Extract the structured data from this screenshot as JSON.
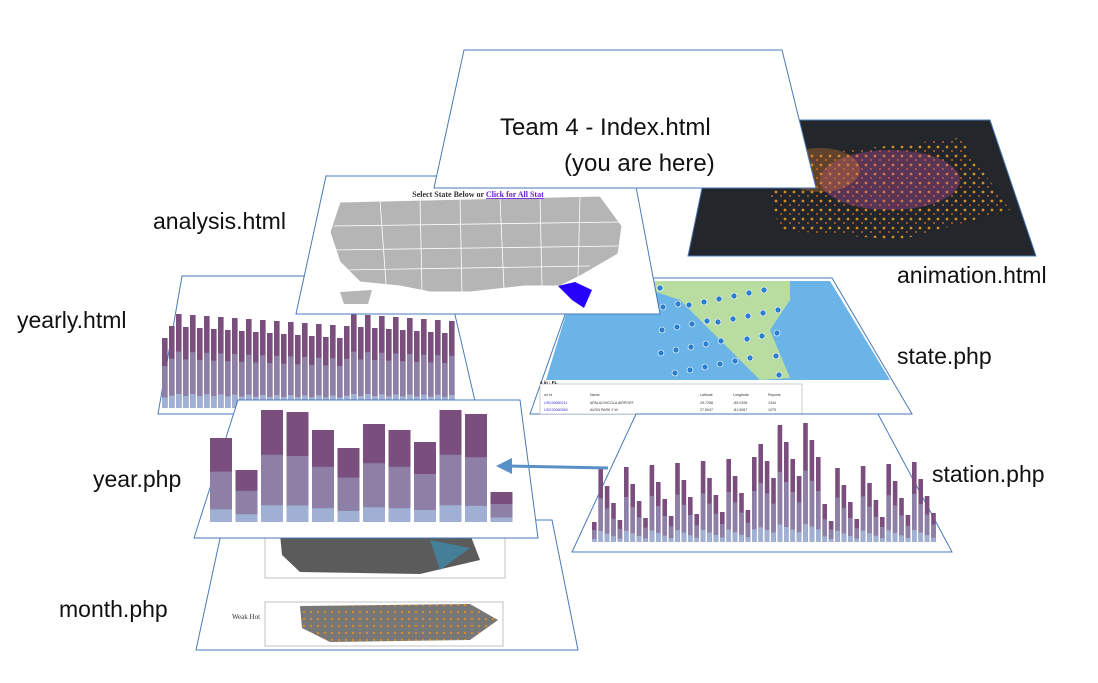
{
  "labels": {
    "index_line1": "Team 4  - Index.html",
    "index_line2": "(you are here)",
    "analysis": "analysis.html",
    "animation": "animation.html",
    "yearly": "yearly.html",
    "state": "state.php",
    "year": "year.php",
    "station": "station.php",
    "month": "month.php"
  },
  "analysis_header": {
    "prefix": "Select State Below or ",
    "link": "Click for All Stat"
  },
  "state_table": {
    "heading": "s in : FL",
    "columns": [
      "on Id",
      "Name",
      "Latitude",
      "Longitude",
      "Reports"
    ],
    "rows": [
      [
        "USC00080211",
        "APALACHICOLA AIRPORT",
        "29.7258",
        "-85.0206",
        "1344"
      ],
      [
        "USC00080369",
        "AVON PARK 2 W",
        "27.5947",
        "-81.5267",
        "1375"
      ]
    ]
  },
  "month_legend": "Weak Hot",
  "colors": {
    "panel_border": "#4a7ab8",
    "bar_dark": "#7a4f7d",
    "bar_mid": "#8d7fa6",
    "bar_light": "#9fb0d4",
    "map_gray": "#b5b5b5",
    "highlight_state": "#2600ff",
    "ocean": "#6ab4e8",
    "arrow": "#5a90c8"
  }
}
